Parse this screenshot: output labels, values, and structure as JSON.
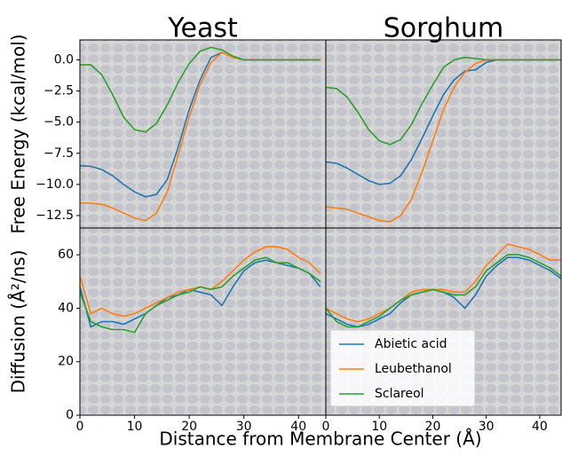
{
  "chart_data": [
    {
      "type": "line",
      "title": "Yeast",
      "ylabel": "Free Energy (kcal/mol)",
      "x": [
        0,
        2,
        4,
        6,
        8,
        10,
        12,
        14,
        16,
        18,
        20,
        22,
        24,
        26,
        28,
        30,
        32,
        34,
        36,
        38,
        40,
        42,
        44
      ],
      "xlim": [
        0,
        45
      ],
      "ylim": [
        -13.5,
        1.6
      ],
      "yticks": [
        {
          "value": 0,
          "label": "0.0"
        },
        {
          "value": -2.5,
          "label": "−2.5"
        },
        {
          "value": -5,
          "label": "−5.0"
        },
        {
          "value": -7.5,
          "label": "−7.5"
        },
        {
          "value": -10,
          "label": "−10.0"
        },
        {
          "value": -12.5,
          "label": "−12.5"
        }
      ],
      "series": [
        {
          "color": "#1f77b4",
          "values": [
            -8.5,
            -8.55,
            -8.8,
            -9.3,
            -10.0,
            -10.6,
            -11.0,
            -10.8,
            -9.6,
            -7.0,
            -4.0,
            -1.6,
            0.2,
            0.6,
            0.2,
            0,
            0,
            0,
            0,
            0,
            0,
            0,
            0
          ]
        },
        {
          "color": "#ff7f0e",
          "values": [
            -11.5,
            -11.5,
            -11.6,
            -11.9,
            -12.3,
            -12.7,
            -12.9,
            -12.3,
            -10.6,
            -7.6,
            -4.6,
            -2.0,
            -0.2,
            0.6,
            0.2,
            0,
            0,
            0,
            0,
            0,
            0,
            0,
            0
          ]
        },
        {
          "color": "#2ca02c",
          "values": [
            -0.4,
            -0.4,
            -1.2,
            -2.8,
            -4.6,
            -5.6,
            -5.8,
            -5.1,
            -3.6,
            -1.8,
            -0.3,
            0.7,
            1.0,
            0.8,
            0.3,
            0,
            0,
            0,
            0,
            0,
            0,
            0,
            0
          ]
        }
      ]
    },
    {
      "type": "line",
      "title": "Sorghum",
      "x": [
        0,
        2,
        4,
        6,
        8,
        10,
        12,
        14,
        16,
        18,
        20,
        22,
        24,
        26,
        28,
        30,
        32,
        34,
        36,
        38,
        40,
        42,
        44
      ],
      "xlim": [
        0,
        44
      ],
      "ylim": [
        -13.5,
        1.6
      ],
      "series": [
        {
          "color": "#1f77b4",
          "values": [
            -8.2,
            -8.3,
            -8.7,
            -9.2,
            -9.7,
            -10.0,
            -9.9,
            -9.3,
            -8.0,
            -6.3,
            -4.5,
            -2.8,
            -1.6,
            -0.9,
            -0.8,
            -0.2,
            0,
            0,
            0,
            0,
            0,
            0,
            0
          ]
        },
        {
          "color": "#ff7f0e",
          "values": [
            -11.8,
            -11.9,
            -12.0,
            -12.3,
            -12.6,
            -12.9,
            -13.0,
            -12.5,
            -11.2,
            -9.0,
            -6.5,
            -4.0,
            -2.2,
            -1.0,
            -0.3,
            0,
            0,
            0,
            0,
            0,
            0,
            0,
            0
          ]
        },
        {
          "color": "#2ca02c",
          "values": [
            -2.2,
            -2.3,
            -3.0,
            -4.2,
            -5.6,
            -6.5,
            -6.8,
            -6.4,
            -5.2,
            -3.5,
            -2.0,
            -0.6,
            0,
            0.2,
            0.1,
            0,
            0,
            0,
            0,
            0,
            0,
            0,
            0
          ]
        }
      ]
    },
    {
      "type": "line",
      "ylabel": "Diffusion (Å²/ns)",
      "xlabel": "Distance from Membrane Center (Å)",
      "x": [
        0,
        2,
        4,
        6,
        8,
        10,
        12,
        14,
        16,
        18,
        20,
        22,
        24,
        26,
        28,
        30,
        32,
        34,
        36,
        38,
        40,
        42,
        44
      ],
      "xlim": [
        0,
        45
      ],
      "ylim": [
        0,
        70
      ],
      "xticks": [
        0,
        10,
        20,
        30,
        40
      ],
      "yticks": [
        0,
        20,
        40,
        60
      ],
      "series": [
        {
          "color": "#1f77b4",
          "values": [
            48,
            33,
            35,
            35,
            34,
            36,
            38,
            41,
            44,
            45,
            47,
            46,
            45,
            41,
            48,
            54,
            57,
            58,
            57,
            56,
            55,
            53,
            48
          ]
        },
        {
          "color": "#ff7f0e",
          "values": [
            52,
            38,
            40,
            38,
            37,
            38,
            40,
            42,
            44,
            46,
            47,
            48,
            47,
            50,
            54,
            58,
            61,
            63,
            63,
            62,
            59,
            57,
            53
          ]
        },
        {
          "color": "#2ca02c",
          "values": [
            46,
            35,
            33,
            32,
            32,
            31,
            38,
            41,
            43,
            45,
            46,
            48,
            47,
            48,
            52,
            55,
            58,
            59,
            57,
            57,
            55,
            53,
            50
          ]
        }
      ]
    },
    {
      "type": "line",
      "legend": "lower left",
      "x": [
        0,
        2,
        4,
        6,
        8,
        10,
        12,
        14,
        16,
        18,
        20,
        22,
        24,
        26,
        28,
        30,
        32,
        34,
        36,
        38,
        40,
        42,
        44
      ],
      "xlim": [
        0,
        44
      ],
      "ylim": [
        0,
        70
      ],
      "xticks": [
        0,
        10,
        20,
        30,
        40
      ],
      "series": [
        {
          "name": "Abietic acid",
          "color": "#1f77b4",
          "values": [
            38,
            36,
            34,
            33,
            34,
            36,
            38,
            42,
            45,
            46,
            47,
            46,
            44,
            40,
            45,
            52,
            56,
            59,
            59,
            58,
            56,
            54,
            51
          ]
        },
        {
          "name": "Leubethanol",
          "color": "#ff7f0e",
          "values": [
            40,
            38,
            36,
            35,
            36,
            38,
            40,
            43,
            46,
            47,
            47,
            47,
            46,
            46,
            50,
            56,
            60,
            64,
            63,
            62,
            60,
            58,
            58
          ]
        },
        {
          "name": "Sclareol",
          "color": "#2ca02c",
          "values": [
            40,
            35,
            33,
            33,
            35,
            37,
            40,
            43,
            45,
            46,
            47,
            46,
            45,
            45,
            48,
            54,
            57,
            60,
            60,
            59,
            57,
            55,
            52
          ]
        }
      ]
    }
  ]
}
